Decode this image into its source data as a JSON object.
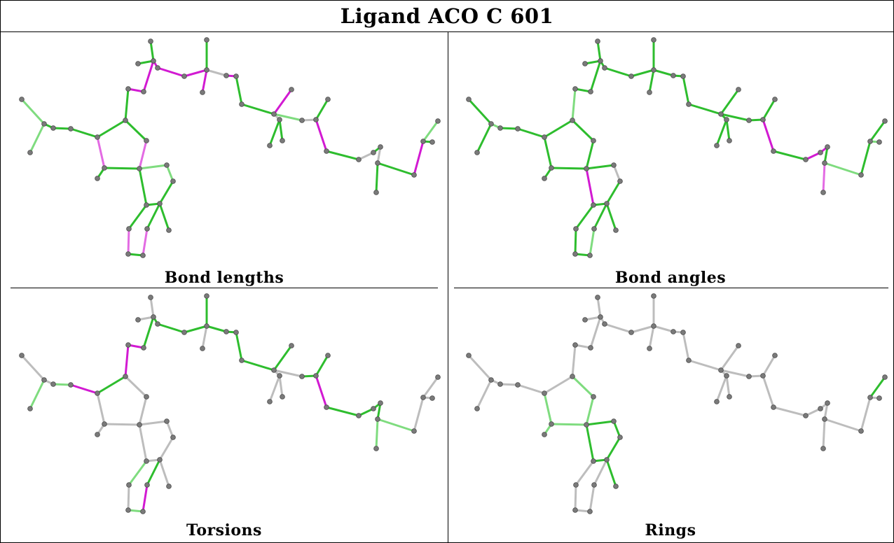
{
  "title": "Ligand ACO C 601",
  "colors": {
    "green": "#2ebd2e",
    "light_green": "#7fdc7f",
    "magenta": "#d21ad2",
    "light_magenta": "#e36be3",
    "gray": "#bdbdbd",
    "atom": "#7a7a7a",
    "atom_dark": "#4a4a4a"
  },
  "panels": [
    {
      "id": "bond-lengths",
      "caption": "Bond lengths"
    },
    {
      "id": "bond-angles",
      "caption": "Bond angles"
    },
    {
      "id": "torsions",
      "caption": "Torsions"
    },
    {
      "id": "rings",
      "caption": "Rings"
    }
  ]
}
